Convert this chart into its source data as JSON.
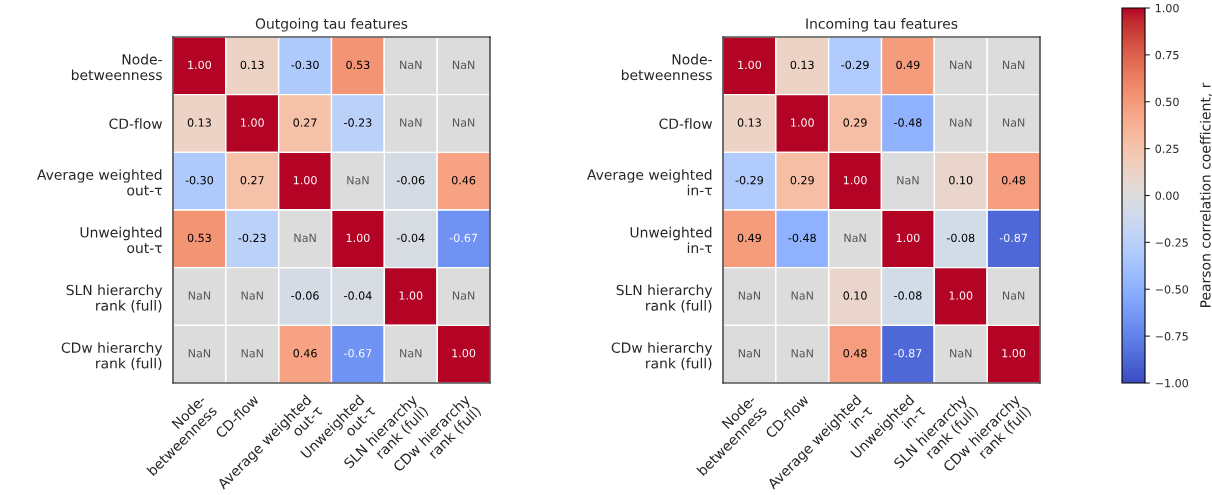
{
  "chart_data": [
    {
      "type": "heatmap",
      "title": "Outgoing tau features",
      "categories": [
        "Node-\nbetweenness",
        "CD-flow",
        "Average weighted\nout-τ",
        "Unweighted\nout-τ",
        "SLN hierarchy\nrank (full)",
        "CDw hierarchy\nrank (full)"
      ],
      "y_categories": [
        "Node-\nbetweenness",
        "CD-flow",
        "Average weighted\nout-τ",
        "Unweighted\nout-τ",
        "SLN hierarchy\nrank (full)",
        "CDw hierarchy\nrank (full)"
      ],
      "cells": [
        [
          1.0,
          0.13,
          -0.3,
          0.53,
          null,
          null
        ],
        [
          0.13,
          1.0,
          0.27,
          -0.23,
          null,
          null
        ],
        [
          -0.3,
          0.27,
          1.0,
          null,
          -0.06,
          0.46
        ],
        [
          0.53,
          -0.23,
          null,
          1.0,
          -0.04,
          -0.67
        ],
        [
          null,
          null,
          -0.06,
          -0.04,
          1.0,
          null
        ],
        [
          null,
          null,
          0.46,
          -0.67,
          null,
          1.0
        ]
      ],
      "cell_labels": [
        [
          "1.00",
          "0.13",
          "-0.30",
          "0.53",
          "NaN",
          "NaN"
        ],
        [
          "0.13",
          "1.00",
          "0.27",
          "-0.23",
          "NaN",
          "NaN"
        ],
        [
          "-0.30",
          "0.27",
          "1.00",
          "NaN",
          "-0.06",
          "0.46"
        ],
        [
          "0.53",
          "-0.23",
          "NaN",
          "1.00",
          "-0.04",
          "-0.67"
        ],
        [
          "NaN",
          "NaN",
          "-0.06",
          "-0.04",
          "1.00",
          "NaN"
        ],
        [
          "NaN",
          "NaN",
          "0.46",
          "-0.67",
          "NaN",
          "1.00"
        ]
      ]
    },
    {
      "type": "heatmap",
      "title": "Incoming tau features",
      "categories": [
        "Node-\nbetweenness",
        "CD-flow",
        "Average weighted\nin-τ",
        "Unweighted\nin-τ",
        "SLN hierarchy\nrank (full)",
        "CDw hierarchy\nrank (full)"
      ],
      "y_categories": [
        "Node-\nbetweenness",
        "CD-flow",
        "Average weighted\nin-τ",
        "Unweighted\nin-τ",
        "SLN hierarchy\nrank (full)",
        "CDw hierarchy\nrank (full)"
      ],
      "cells": [
        [
          1.0,
          0.13,
          -0.29,
          0.49,
          null,
          null
        ],
        [
          0.13,
          1.0,
          0.29,
          -0.48,
          null,
          null
        ],
        [
          -0.29,
          0.29,
          1.0,
          null,
          0.1,
          0.48
        ],
        [
          0.49,
          -0.48,
          null,
          1.0,
          -0.08,
          -0.87
        ],
        [
          null,
          null,
          0.1,
          -0.08,
          1.0,
          null
        ],
        [
          null,
          null,
          0.48,
          -0.87,
          null,
          1.0
        ]
      ],
      "cell_labels": [
        [
          "1.00",
          "0.13",
          "-0.29",
          "0.49",
          "NaN",
          "NaN"
        ],
        [
          "0.13",
          "1.00",
          "0.29",
          "-0.48",
          "NaN",
          "NaN"
        ],
        [
          "-0.29",
          "0.29",
          "1.00",
          "NaN",
          "0.10",
          "0.48"
        ],
        [
          "0.49",
          "-0.48",
          "NaN",
          "1.00",
          "-0.08",
          "-0.87"
        ],
        [
          "NaN",
          "NaN",
          "0.10",
          "-0.08",
          "1.00",
          "NaN"
        ],
        [
          "NaN",
          "NaN",
          "0.48",
          "-0.87",
          "NaN",
          "1.00"
        ]
      ],
      "clim": [
        -1,
        1
      ],
      "clabel": "Pearson correlation coefficient, r",
      "cticks": [
        {
          "value": -1,
          "label": "−1.00"
        },
        {
          "value": -0.75,
          "label": "−0.75"
        },
        {
          "value": -0.5,
          "label": "−0.50"
        },
        {
          "value": -0.25,
          "label": "−0.25"
        },
        {
          "value": 0,
          "label": "0.00"
        },
        {
          "value": 0.25,
          "label": "0.25"
        },
        {
          "value": 0.5,
          "label": "0.50"
        },
        {
          "value": 0.75,
          "label": "0.75"
        },
        {
          "value": 1,
          "label": "1.00"
        }
      ]
    }
  ]
}
